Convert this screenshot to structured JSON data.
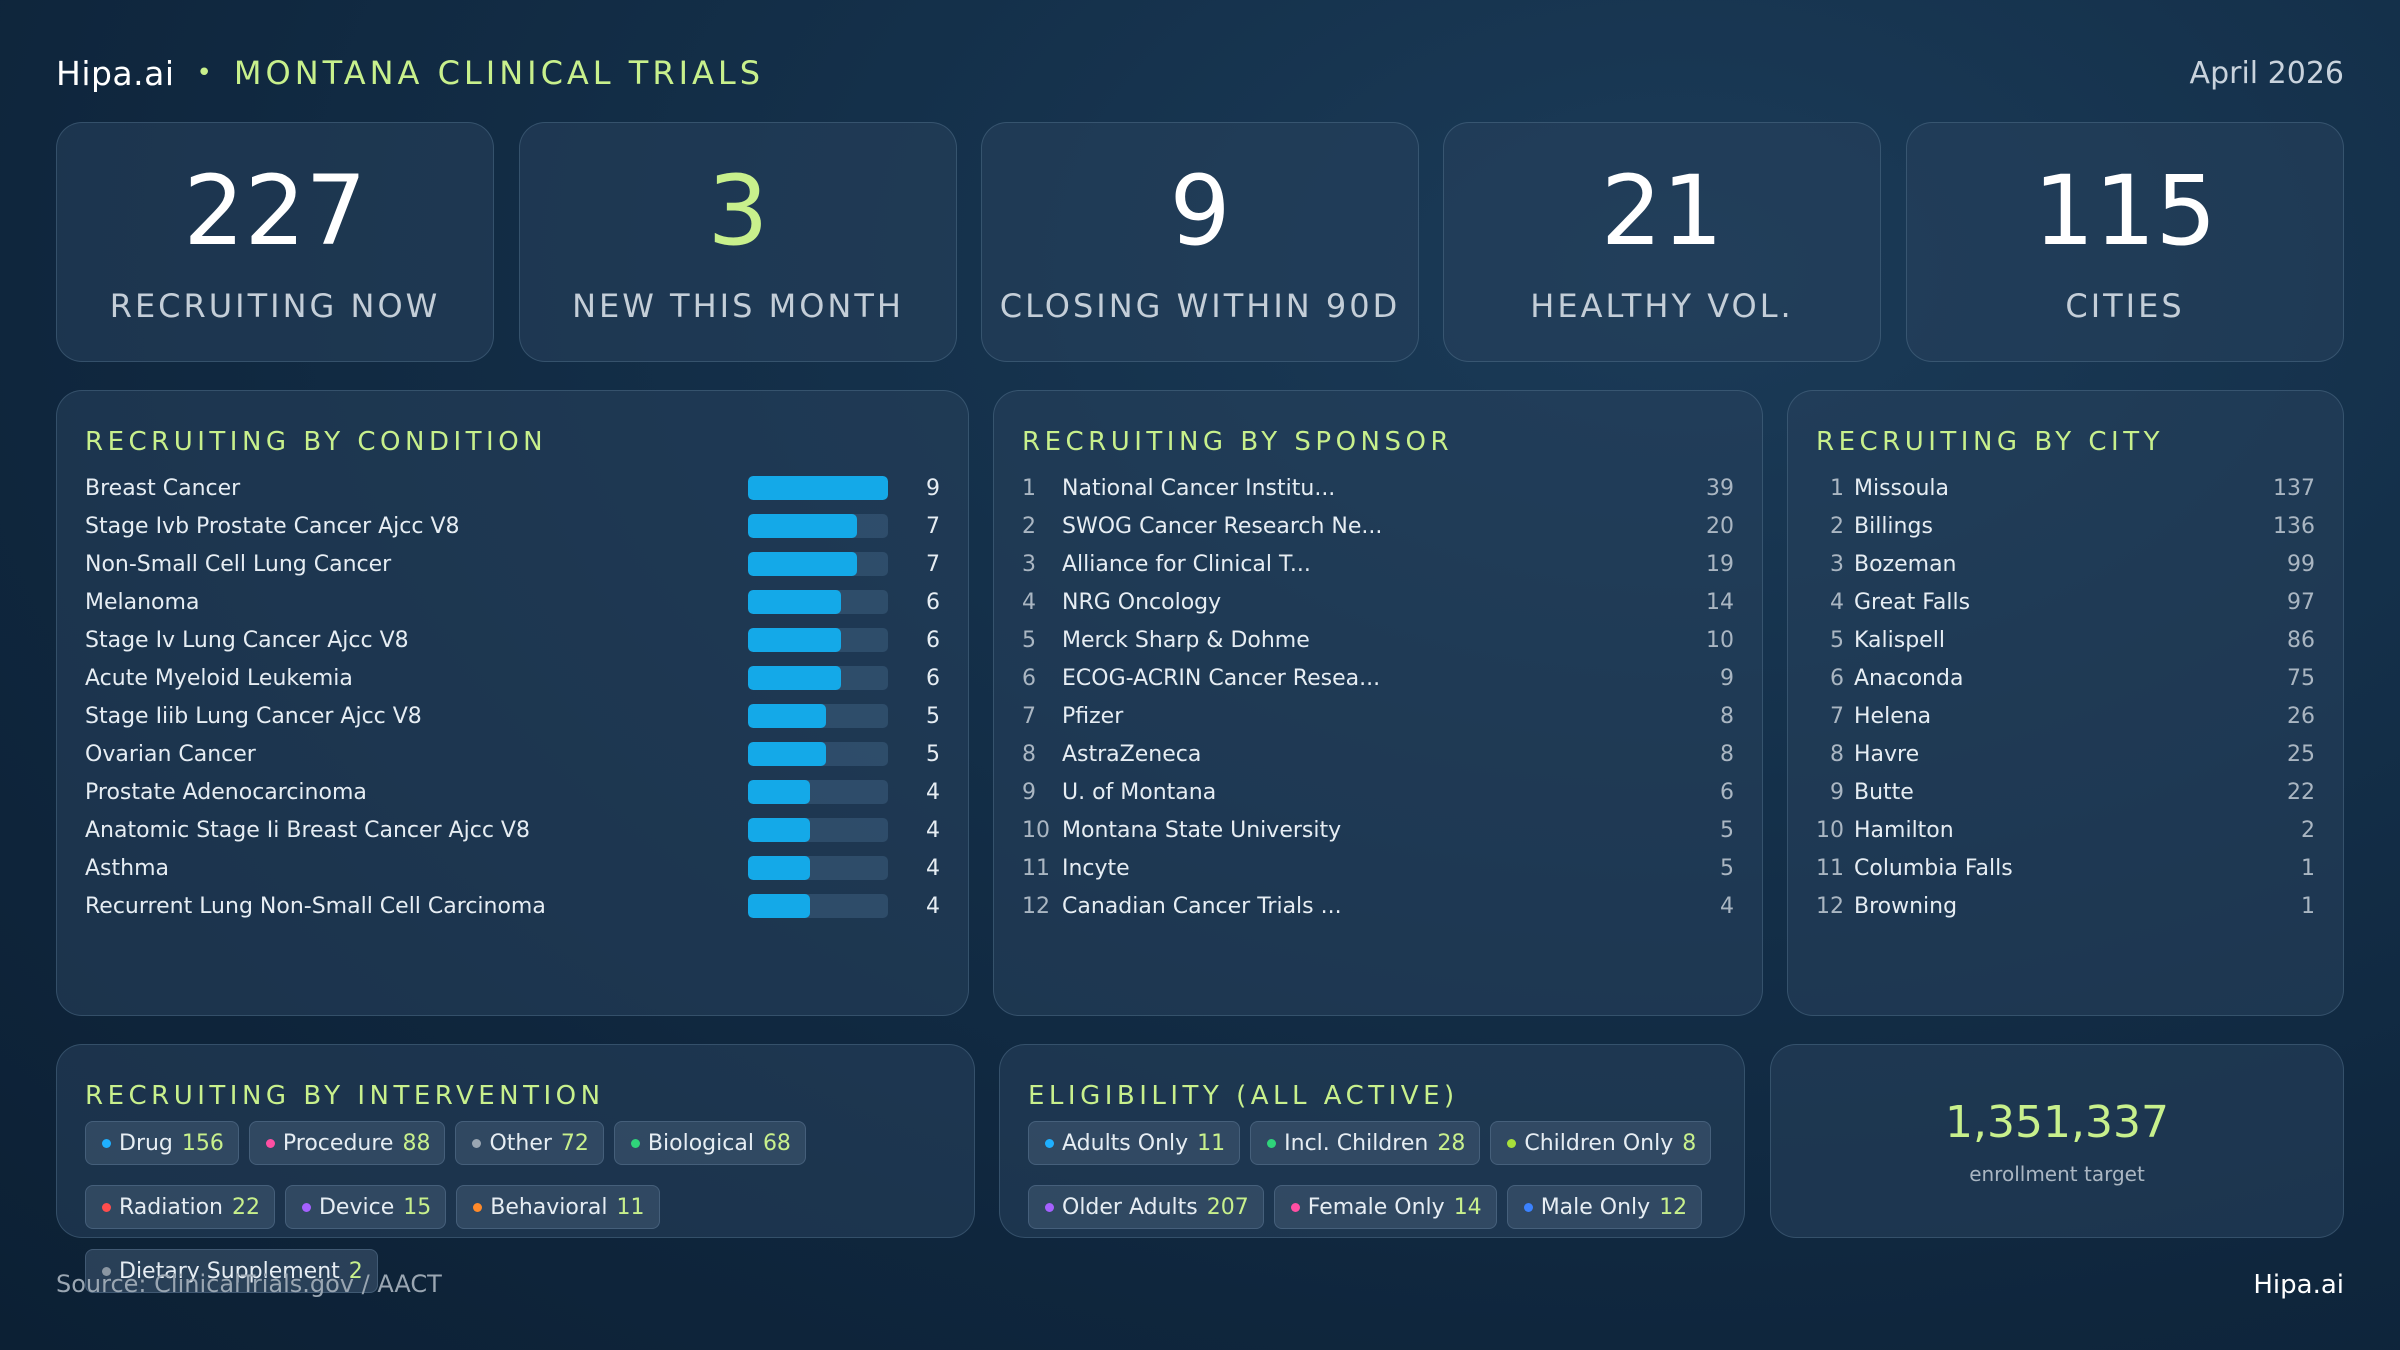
{
  "header": {
    "brand": "Hipa.ai",
    "separator": "•",
    "title": "MONTANA CLINICAL TRIALS",
    "date": "April 2026"
  },
  "kpis": [
    {
      "value": "227",
      "label": "RECRUITING NOW"
    },
    {
      "value": "3",
      "label": "NEW THIS MONTH"
    },
    {
      "value": "9",
      "label": "CLOSING WITHIN 90D"
    },
    {
      "value": "21",
      "label": "HEALTHY VOL."
    },
    {
      "value": "115",
      "label": "CITIES"
    }
  ],
  "condition": {
    "title": "RECRUITING BY CONDITION",
    "max": 9,
    "items": [
      {
        "name": "Breast Cancer",
        "value": 9
      },
      {
        "name": "Stage Ivb Prostate Cancer Ajcc V8",
        "value": 7
      },
      {
        "name": "Non-Small Cell Lung Cancer",
        "value": 7
      },
      {
        "name": "Melanoma",
        "value": 6
      },
      {
        "name": "Stage Iv Lung Cancer Ajcc V8",
        "value": 6
      },
      {
        "name": "Acute Myeloid Leukemia",
        "value": 6
      },
      {
        "name": "Stage Iiib Lung Cancer Ajcc V8",
        "value": 5
      },
      {
        "name": "Ovarian Cancer",
        "value": 5
      },
      {
        "name": "Prostate Adenocarcinoma",
        "value": 4
      },
      {
        "name": "Anatomic Stage Ii Breast Cancer Ajcc V8",
        "value": 4
      },
      {
        "name": "Asthma",
        "value": 4
      },
      {
        "name": "Recurrent Lung Non-Small Cell Carcinoma",
        "value": 4
      }
    ]
  },
  "sponsor": {
    "title": "RECRUITING BY SPONSOR",
    "items": [
      {
        "rank": "1",
        "name": "National Cancer Institu...",
        "value": "39"
      },
      {
        "rank": "2",
        "name": "SWOG Cancer Research Ne...",
        "value": "20"
      },
      {
        "rank": "3",
        "name": "Alliance for Clinical T...",
        "value": "19"
      },
      {
        "rank": "4",
        "name": "NRG Oncology",
        "value": "14"
      },
      {
        "rank": "5",
        "name": "Merck Sharp & Dohme",
        "value": "10"
      },
      {
        "rank": "6",
        "name": "ECOG-ACRIN Cancer Resea...",
        "value": "9"
      },
      {
        "rank": "7",
        "name": "Pfizer",
        "value": "8"
      },
      {
        "rank": "8",
        "name": "AstraZeneca",
        "value": "8"
      },
      {
        "rank": "9",
        "name": "U. of Montana",
        "value": "6"
      },
      {
        "rank": "10",
        "name": "Montana State University",
        "value": "5"
      },
      {
        "rank": "11",
        "name": "Incyte",
        "value": "5"
      },
      {
        "rank": "12",
        "name": "Canadian Cancer Trials ...",
        "value": "4"
      }
    ]
  },
  "city": {
    "title": "RECRUITING BY CITY",
    "items": [
      {
        "rank": "1",
        "name": "Missoula",
        "value": "137"
      },
      {
        "rank": "2",
        "name": "Billings",
        "value": "136"
      },
      {
        "rank": "3",
        "name": "Bozeman",
        "value": "99"
      },
      {
        "rank": "4",
        "name": "Great Falls",
        "value": "97"
      },
      {
        "rank": "5",
        "name": "Kalispell",
        "value": "86"
      },
      {
        "rank": "6",
        "name": "Anaconda",
        "value": "75"
      },
      {
        "rank": "7",
        "name": "Helena",
        "value": "26"
      },
      {
        "rank": "8",
        "name": "Havre",
        "value": "25"
      },
      {
        "rank": "9",
        "name": "Butte",
        "value": "22"
      },
      {
        "rank": "10",
        "name": "Hamilton",
        "value": "2"
      },
      {
        "rank": "11",
        "name": "Columbia Falls",
        "value": "1"
      },
      {
        "rank": "12",
        "name": "Browning",
        "value": "1"
      }
    ]
  },
  "intervention": {
    "title": "RECRUITING BY INTERVENTION",
    "chips": [
      {
        "label": "Drug",
        "value": "156",
        "color": "#1fb0ff"
      },
      {
        "label": "Procedure",
        "value": "88",
        "color": "#ff4fa3"
      },
      {
        "label": "Other",
        "value": "72",
        "color": "#9aa6b2"
      },
      {
        "label": "Biological",
        "value": "68",
        "color": "#2fd47a"
      },
      {
        "label": "Radiation",
        "value": "22",
        "color": "#ff4d4d"
      },
      {
        "label": "Device",
        "value": "15",
        "color": "#a561ff"
      },
      {
        "label": "Behavioral",
        "value": "11",
        "color": "#ff8a2a"
      },
      {
        "label": "Dietary Supplement",
        "value": "2",
        "color": "#8a96a2"
      }
    ]
  },
  "eligibility": {
    "title": "ELIGIBILITY (ALL ACTIVE)",
    "chips": [
      {
        "label": "Adults Only",
        "value": "11",
        "color": "#1fb0ff"
      },
      {
        "label": "Incl. Children",
        "value": "28",
        "color": "#2fd47a"
      },
      {
        "label": "Children Only",
        "value": "8",
        "color": "#a8e03a"
      },
      {
        "label": "Older Adults",
        "value": "207",
        "color": "#a561ff"
      },
      {
        "label": "Female Only",
        "value": "14",
        "color": "#ff4fa3"
      },
      {
        "label": "Male Only",
        "value": "12",
        "color": "#3b82ff"
      }
    ]
  },
  "enrollment": {
    "value": "1,351,337",
    "label": "enrollment target"
  },
  "footer": {
    "source": "Source: ClinicalTrials.gov / AACT",
    "brand": "Hipa.ai"
  }
}
